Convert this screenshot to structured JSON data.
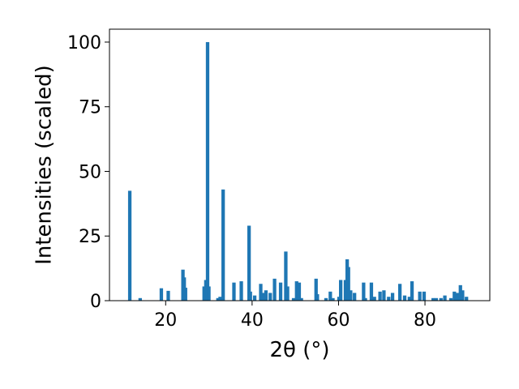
{
  "chart_data": {
    "type": "bar",
    "xlabel": "2θ (°)",
    "ylabel": "Intensities (scaled)",
    "xlim": [
      7,
      95
    ],
    "ylim": [
      0,
      105
    ],
    "xticks": [
      20,
      40,
      60,
      80
    ],
    "yticks": [
      0,
      25,
      50,
      75,
      100
    ],
    "grid": false,
    "bar_color": "#1f77b4",
    "bar_width": 0.8,
    "x": [
      11.7,
      14.1,
      19.0,
      20.6,
      24.0,
      24.3,
      24.6,
      28.9,
      29.3,
      29.7,
      30.0,
      32.1,
      32.6,
      33.3,
      35.8,
      37.5,
      39.3,
      39.6,
      40.6,
      42.0,
      42.6,
      43.2,
      44.2,
      45.2,
      46.6,
      47.8,
      48.2,
      49.6,
      50.3,
      50.9,
      51.4,
      54.8,
      55.1,
      57.1,
      58.1,
      58.7,
      60.1,
      60.5,
      61.6,
      62.0,
      62.3,
      62.8,
      63.7,
      65.8,
      66.2,
      67.6,
      68.3,
      69.6,
      70.5,
      71.6,
      72.5,
      74.2,
      75.3,
      76.4,
      77.0,
      78.8,
      79.8,
      81.9,
      82.6,
      83.7,
      84.6,
      86.0,
      86.8,
      87.5,
      88.2,
      88.7,
      89.6
    ],
    "values": [
      42.5,
      1.0,
      4.8,
      3.8,
      12.0,
      9.0,
      5.0,
      5.5,
      8.0,
      100.0,
      5.5,
      1.0,
      1.5,
      43.0,
      7.0,
      7.5,
      29.0,
      3.5,
      2.0,
      6.5,
      3.0,
      4.0,
      3.0,
      8.5,
      7.0,
      19.0,
      5.5,
      1.0,
      7.5,
      7.0,
      1.0,
      8.5,
      2.5,
      1.0,
      3.5,
      1.0,
      1.5,
      8.0,
      8.0,
      16.0,
      13.0,
      4.0,
      3.0,
      7.0,
      1.0,
      7.0,
      1.5,
      3.5,
      4.0,
      1.5,
      3.0,
      6.5,
      2.0,
      1.5,
      7.5,
      3.5,
      3.5,
      1.0,
      1.0,
      1.0,
      2.0,
      1.0,
      3.5,
      3.0,
      6.0,
      4.0,
      1.5
    ]
  }
}
